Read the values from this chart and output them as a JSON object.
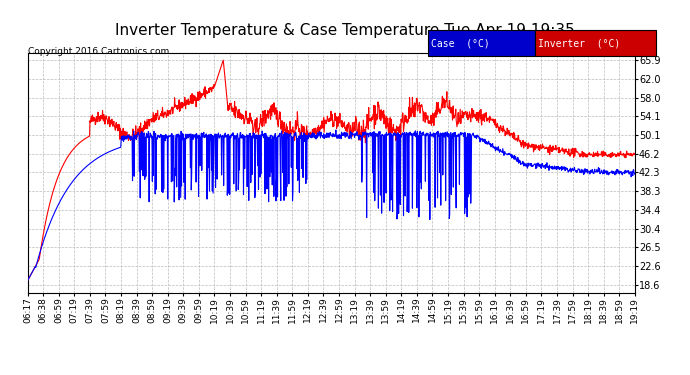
{
  "title": "Inverter Temperature & Case Temperature Tue Apr 19 19:35",
  "copyright": "Copyright 2016 Cartronics.com",
  "legend_labels": [
    "Case  (°C)",
    "Inverter  (°C)"
  ],
  "yticks": [
    18.6,
    22.6,
    26.5,
    30.4,
    34.4,
    38.3,
    42.3,
    46.2,
    50.1,
    54.1,
    58.0,
    62.0,
    65.9
  ],
  "ylim": [
    17.0,
    67.5
  ],
  "bg_color": "#ffffff",
  "plot_bg_color": "#ffffff",
  "grid_color": "#bbbbbb",
  "title_fontsize": 11,
  "axis_fontsize": 7,
  "xtick_labels": [
    "06:17",
    "06:38",
    "06:59",
    "07:19",
    "07:39",
    "07:59",
    "08:19",
    "08:39",
    "08:59",
    "09:19",
    "09:39",
    "09:59",
    "10:19",
    "10:39",
    "10:59",
    "11:19",
    "11:39",
    "11:59",
    "12:19",
    "12:39",
    "12:59",
    "13:19",
    "13:39",
    "13:59",
    "14:19",
    "14:39",
    "14:59",
    "15:19",
    "15:39",
    "15:59",
    "16:19",
    "16:39",
    "16:59",
    "17:19",
    "17:39",
    "17:59",
    "18:19",
    "18:39",
    "18:59",
    "19:19"
  ],
  "case_color": "#0000ff",
  "inverter_color": "#ff0000",
  "case_legend_bg": "#0000cc",
  "inverter_legend_bg": "#cc0000",
  "line_width": 0.8
}
